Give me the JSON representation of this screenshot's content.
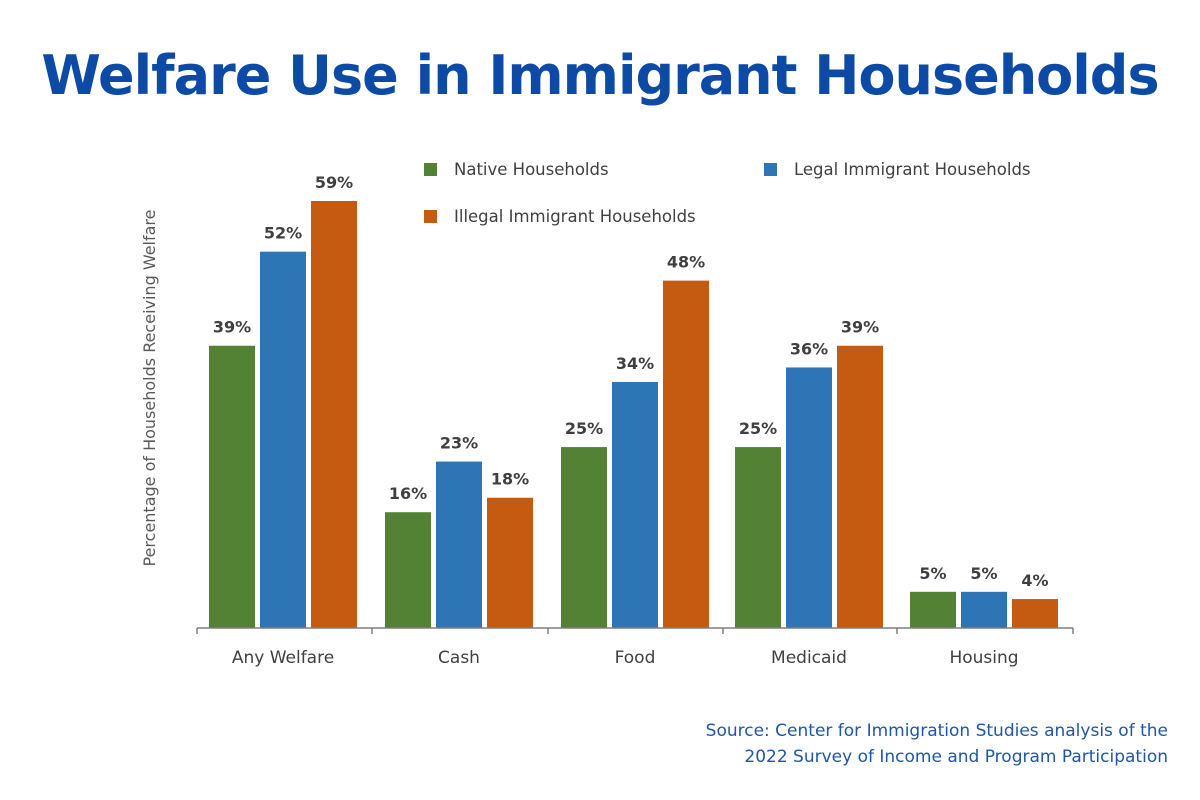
{
  "title": "Welfare Use in Immigrant Households",
  "source": {
    "line1": "Source: Center for Immigration Studies analysis of the",
    "line2": "2022 Survey of Income and Program Participation"
  },
  "chart_data": {
    "type": "bar",
    "title": "Welfare Use in Immigrant Households",
    "xlabel": "",
    "ylabel": "Percentage of Households Receiving Welfare",
    "categories": [
      "Any Welfare",
      "Cash",
      "Food",
      "Medicaid",
      "Housing"
    ],
    "series": [
      {
        "name": "Native Households",
        "color": "#548235",
        "values": [
          39,
          16,
          25,
          25,
          5
        ],
        "labels": [
          "39%",
          "16%",
          "25%",
          "25%",
          "5%"
        ]
      },
      {
        "name": "Legal Immigrant Households",
        "color": "#2e75b6",
        "values": [
          52,
          23,
          34,
          36,
          5
        ],
        "labels": [
          "52%",
          "23%",
          "34%",
          "36%",
          "5%"
        ]
      },
      {
        "name": "Illegal Immigrant Households",
        "color": "#c55a11",
        "values": [
          59,
          18,
          48,
          39,
          4
        ],
        "labels": [
          "59%",
          "18%",
          "48%",
          "39%",
          "4%"
        ]
      }
    ],
    "ylim": [
      0,
      59
    ],
    "grid": false,
    "legend_position": "top"
  }
}
